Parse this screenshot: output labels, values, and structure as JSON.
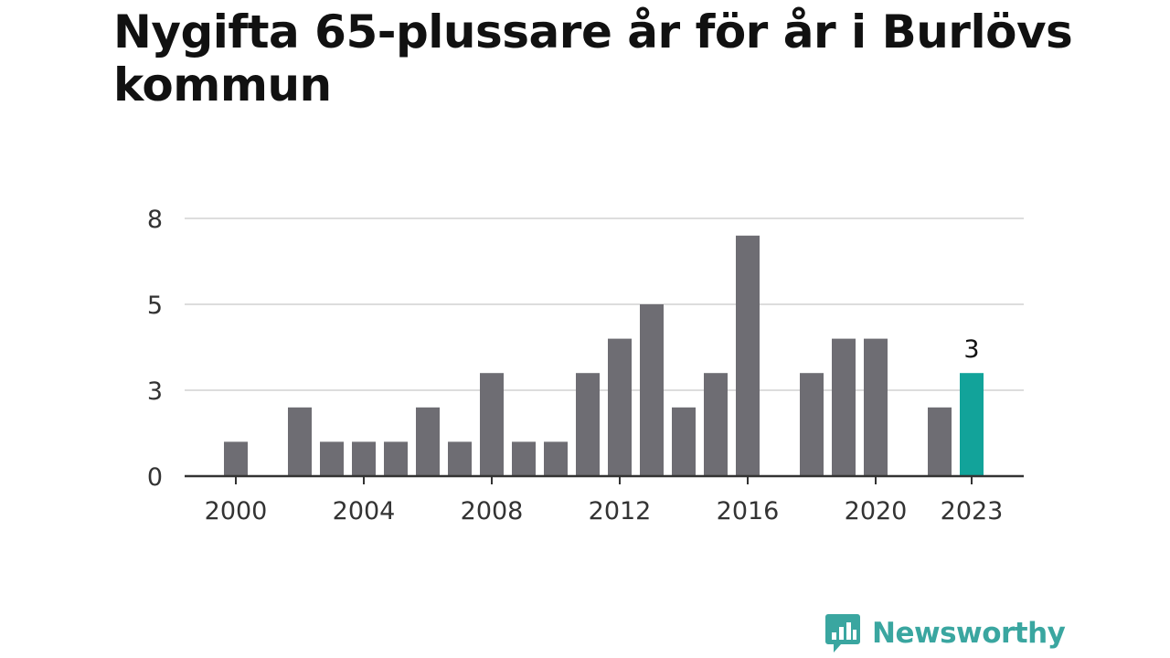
{
  "title": "Nygifta 65-plussare år för år i Burlövs kommun",
  "brand": {
    "name": "Newsworthy",
    "icon": "bar-chart-speech-bubble-icon",
    "color": "#3aa6a0"
  },
  "colors": {
    "bar": "#6e6d73",
    "highlight": "#12a39a",
    "grid": "#dddddd",
    "axis": "#333333"
  },
  "chart_data": {
    "type": "bar",
    "x": [
      2000,
      2001,
      2002,
      2003,
      2004,
      2005,
      2006,
      2007,
      2008,
      2009,
      2010,
      2011,
      2012,
      2013,
      2014,
      2015,
      2016,
      2017,
      2018,
      2019,
      2020,
      2021,
      2022,
      2023
    ],
    "values": [
      1,
      0,
      2,
      1,
      1,
      1,
      2,
      1,
      3,
      1,
      1,
      3,
      4,
      5,
      2,
      3,
      7,
      0,
      3,
      4,
      4,
      0,
      2,
      3
    ],
    "highlight_index": 23,
    "data_labels": [
      {
        "index": 23,
        "text": "3"
      }
    ],
    "x_tick_labels": [
      "2000",
      "2004",
      "2008",
      "2012",
      "2016",
      "2020",
      "2023"
    ],
    "y_ticks": [
      0,
      2.5,
      5,
      7.5
    ],
    "y_tick_labels": [
      "0",
      "3",
      "5",
      "8"
    ],
    "ylim": [
      0,
      7.5
    ],
    "grid": true,
    "title": "Nygifta 65-plussare år för år i Burlövs kommun"
  }
}
